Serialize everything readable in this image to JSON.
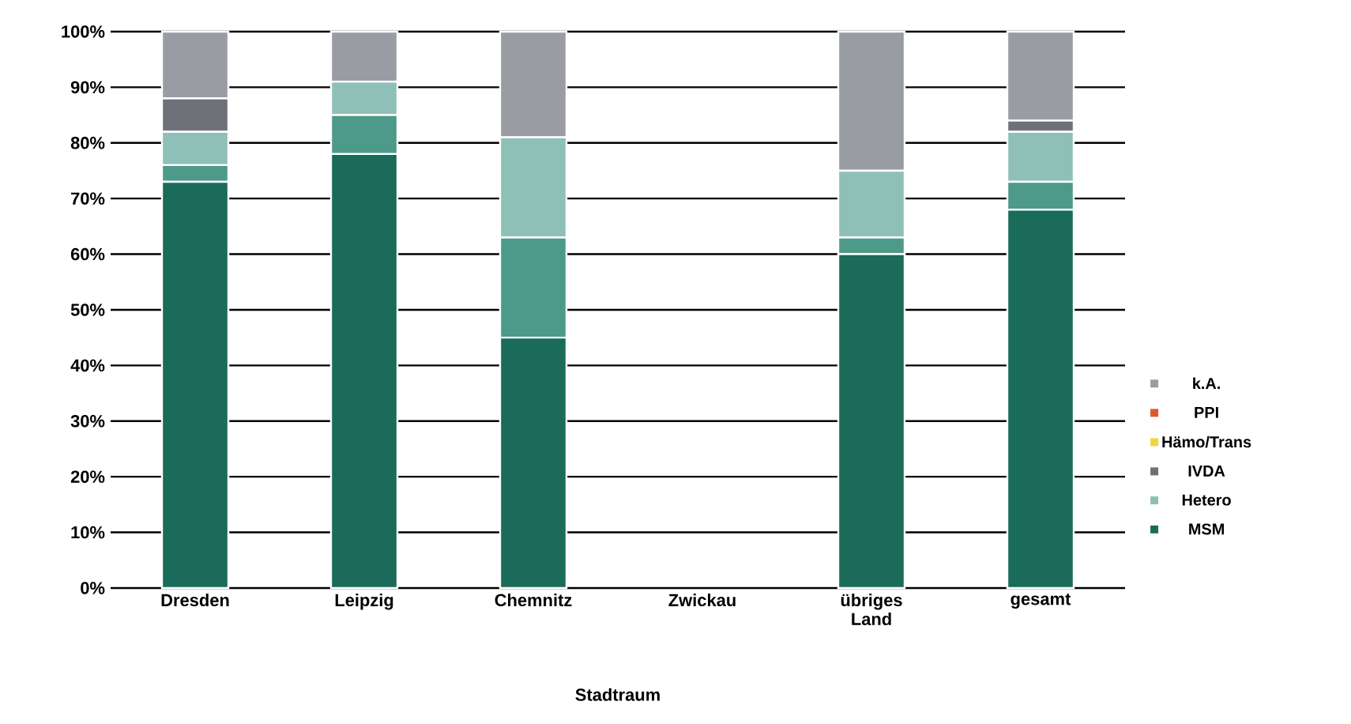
{
  "chart_data": {
    "type": "bar",
    "stacked": true,
    "xlabel": "Stadtraum",
    "categories": [
      "Dresden",
      "Leipzig",
      "Chemnitz",
      "Zwickau",
      "übriges Land",
      "gesamt"
    ],
    "series": [
      {
        "name": "MSM",
        "color": "#1a6b5a",
        "values": [
          73,
          78,
          45,
          null,
          60,
          68
        ]
      },
      {
        "color": "#4d9a8a",
        "values": [
          3,
          7,
          18,
          null,
          3,
          5
        ]
      },
      {
        "name": "Hetero",
        "color": "#8fc0b7",
        "values": [
          6,
          6,
          18,
          null,
          12,
          9
        ]
      },
      {
        "name": "IVDA",
        "color": "#6e7177",
        "values": [
          6,
          0,
          0,
          null,
          0,
          2
        ]
      },
      {
        "name": "Hämo/Trans",
        "color": "#f2d43c",
        "values": [
          0,
          0,
          0,
          null,
          0,
          0
        ]
      },
      {
        "name": "PPI",
        "color": "#e0562a",
        "values": [
          0,
          0,
          0,
          null,
          0,
          0
        ]
      },
      {
        "name": "k.A.",
        "color": "#9a9ca3",
        "values": [
          12,
          9,
          19,
          null,
          25,
          16
        ]
      }
    ],
    "ylim": [
      0,
      100
    ],
    "yticks": [
      {
        "value": 0,
        "label": "0%"
      },
      {
        "value": 10,
        "label": "10%"
      },
      {
        "value": 20,
        "label": "20%"
      },
      {
        "value": 30,
        "label": "30%"
      },
      {
        "value": 40,
        "label": "40%"
      },
      {
        "value": 50,
        "label": "50%"
      },
      {
        "value": 60,
        "label": "60%"
      },
      {
        "value": 70,
        "label": "70%"
      },
      {
        "value": 80,
        "label": "80%"
      },
      {
        "value": 90,
        "label": "90%"
      },
      {
        "value": 100,
        "label": "100%"
      }
    ],
    "grid": "y",
    "legend": "right"
  }
}
